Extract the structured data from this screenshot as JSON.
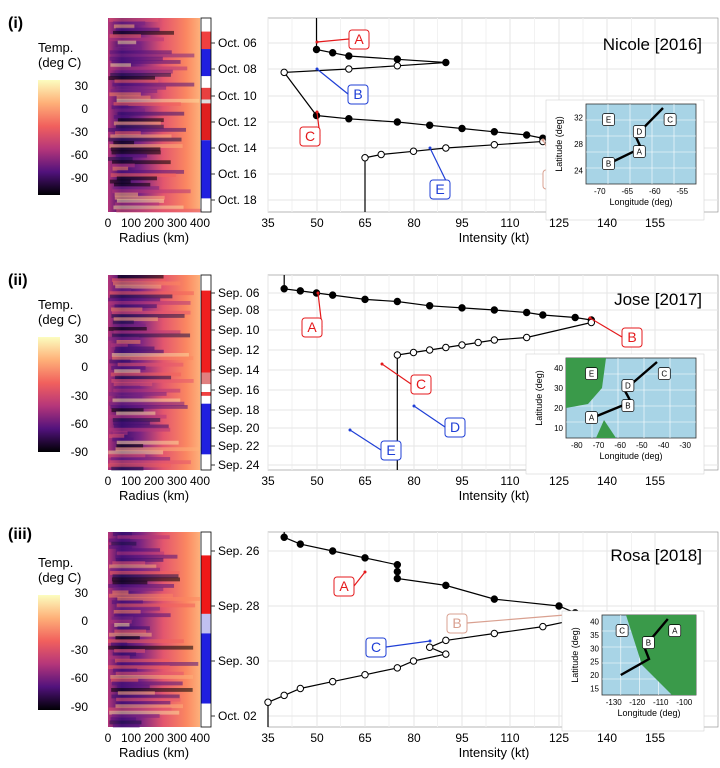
{
  "panels": [
    {
      "label": "(i)",
      "storm_title": "Nicole [2016]",
      "colorbar": {
        "title_line1": "Temp.",
        "title_line2": "(deg C)",
        "ticks": [
          "30",
          "0",
          "-30",
          "-60",
          "-90"
        ]
      },
      "heatmap": {
        "xlabel": "Radius (km)",
        "xticks": [
          "0",
          "100",
          "200",
          "300",
          "400"
        ]
      },
      "date_ticks": [
        "Oct. 06",
        "Oct. 08",
        "Oct. 10",
        "Oct. 12",
        "Oct. 14",
        "Oct. 16",
        "Oct. 18"
      ],
      "intensity": {
        "xlabel": "Intensity (kt)",
        "xticks": [
          "35",
          "50",
          "65",
          "80",
          "95",
          "110",
          "125",
          "140",
          "155"
        ]
      },
      "annotations": [
        "A",
        "B",
        "C",
        "D",
        "E"
      ],
      "inset": {
        "xlabel": "Longitude (deg)",
        "ylabel": "Latitude (deg)",
        "xticks": [
          "-70",
          "-65",
          "-60",
          "-55"
        ],
        "yticks": [
          "32",
          "28",
          "24"
        ],
        "labels": [
          "E",
          "D",
          "C",
          "B",
          "A"
        ]
      }
    },
    {
      "label": "(ii)",
      "storm_title": "Jose [2017]",
      "colorbar": {
        "title_line1": "Temp.",
        "title_line2": "(deg C)",
        "ticks": [
          "30",
          "0",
          "-30",
          "-60",
          "-90"
        ]
      },
      "heatmap": {
        "xlabel": "Radius (km)",
        "xticks": [
          "0",
          "100",
          "200",
          "300",
          "400"
        ]
      },
      "date_ticks": [
        "Sep. 06",
        "Sep. 08",
        "Sep. 10",
        "Sep. 12",
        "Sep. 14",
        "Sep. 16",
        "Sep. 18",
        "Sep. 20",
        "Sep. 22",
        "Sep. 24"
      ],
      "intensity": {
        "xlabel": "Intensity (kt)",
        "xticks": [
          "35",
          "50",
          "65",
          "80",
          "95",
          "110",
          "125",
          "140",
          "155"
        ]
      },
      "annotations": [
        "A",
        "B",
        "C",
        "D",
        "E"
      ],
      "inset": {
        "xlabel": "Longitude (deg)",
        "ylabel": "Latitude (deg)",
        "xticks": [
          "-80",
          "-70",
          "-60",
          "-50",
          "-40",
          "-30"
        ],
        "yticks": [
          "40",
          "30",
          "20",
          "10"
        ],
        "labels": [
          "E",
          "D",
          "C",
          "A",
          "B"
        ]
      }
    },
    {
      "label": "(iii)",
      "storm_title": "Rosa [2018]",
      "colorbar": {
        "title_line1": "Temp.",
        "title_line2": "(deg C)",
        "ticks": [
          "30",
          "0",
          "-30",
          "-60",
          "-90"
        ]
      },
      "heatmap": {
        "xlabel": "Radius (km)",
        "xticks": [
          "0",
          "100",
          "200",
          "300",
          "400"
        ]
      },
      "date_ticks": [
        "Sep. 26",
        "Sep. 28",
        "Sep. 30",
        "Oct. 02"
      ],
      "intensity": {
        "xlabel": "Intensity (kt)",
        "xticks": [
          "35",
          "50",
          "65",
          "80",
          "95",
          "110",
          "125",
          "140",
          "155"
        ]
      },
      "annotations": [
        "A",
        "B",
        "C"
      ],
      "inset": {
        "xlabel": "Longitude (deg)",
        "ylabel": "Latitude (deg)",
        "xticks": [
          "-130",
          "-120",
          "-110",
          "-100"
        ],
        "yticks": [
          "40",
          "35",
          "30",
          "25",
          "20",
          "15"
        ],
        "labels": [
          "C",
          "B",
          "A"
        ]
      }
    }
  ],
  "colors": {
    "annot_a": "#e41a1c",
    "annot_b_blue": "#1f3fd6",
    "annot_faded": "#d9a090",
    "ocean": "#a8d4e6",
    "land": "#3a9a4a"
  },
  "chart_data": [
    {
      "type": "line",
      "title": "Nicole [2016]",
      "xlabel": "Intensity (kt)",
      "xlim": [
        35,
        170
      ],
      "series": [
        {
          "marker": "filled",
          "x": [
            50,
            55,
            60,
            75,
            90
          ],
          "y": [
            "Oct. 06 12Z",
            "Oct. 06 18Z",
            "Oct. 07 00Z",
            "Oct. 07 06Z",
            "Oct. 07 12Z"
          ]
        },
        {
          "marker": "open",
          "x": [
            75,
            60,
            40
          ],
          "y": [
            "Oct. 07 18Z",
            "Oct. 08 00Z",
            "Oct. 08 06Z"
          ]
        },
        {
          "marker": "filled",
          "x": [
            50,
            60,
            75,
            85,
            95,
            105,
            115,
            120
          ],
          "y": [
            "Oct. 11 12Z",
            "Oct. 11 18Z",
            "Oct. 12 00Z",
            "Oct. 12 06Z",
            "Oct. 12 12Z",
            "Oct. 12 18Z",
            "Oct. 13 00Z",
            "Oct. 13 06Z"
          ]
        },
        {
          "marker": "open",
          "x": [
            120,
            105,
            90,
            80,
            70,
            65
          ],
          "y": [
            "Oct. 13 12Z",
            "Oct. 13 18Z",
            "Oct. 14 00Z",
            "Oct. 14 06Z",
            "Oct. 14 12Z",
            "Oct. 14 18Z"
          ]
        }
      ]
    },
    {
      "type": "line",
      "title": "Jose [2017]",
      "xlabel": "Intensity (kt)",
      "xlim": [
        35,
        170
      ],
      "series": [
        {
          "marker": "filled",
          "x": [
            40,
            45,
            50,
            55,
            65,
            75,
            85,
            95,
            105,
            115,
            120,
            130,
            135
          ],
          "y": [
            "Sep. 05 12Z",
            "Sep. 05 18Z",
            "Sep. 06 00Z",
            "Sep. 06 06Z",
            "Sep. 06 18Z",
            "Sep. 07 00Z",
            "Sep. 07 12Z",
            "Sep. 07 18Z",
            "Sep. 08 00Z",
            "Sep. 08 06Z",
            "Sep. 08 12Z",
            "Sep. 08 18Z",
            "Sep. 09 00Z"
          ]
        },
        {
          "marker": "open",
          "x": [
            135,
            115,
            105,
            100,
            95,
            90,
            85,
            80,
            75
          ],
          "y": [
            "Sep. 09 06Z",
            "Sep. 10 18Z",
            "Sep. 11 00Z",
            "Sep. 11 06Z",
            "Sep. 11 12Z",
            "Sep. 11 18Z",
            "Sep. 12 00Z",
            "Sep. 12 06Z",
            "Sep. 12 12Z"
          ]
        }
      ]
    },
    {
      "type": "line",
      "title": "Rosa [2018]",
      "xlabel": "Intensity (kt)",
      "xlim": [
        35,
        170
      ],
      "series": [
        {
          "marker": "filled",
          "x": [
            40,
            45,
            55,
            65,
            75,
            75,
            75,
            90,
            105,
            125,
            130
          ],
          "y": [
            "Sep. 25 12Z",
            "Sep. 25 18Z",
            "Sep. 26 00Z",
            "Sep. 26 06Z",
            "Sep. 26 12Z",
            "Sep. 26 18Z",
            "Sep. 27 00Z",
            "Sep. 27 06Z",
            "Sep. 27 18Z",
            "Sep. 28 00Z",
            "Sep. 28 06Z"
          ]
        },
        {
          "marker": "open",
          "x": [
            130,
            120,
            105,
            90,
            85,
            90,
            80,
            75,
            65,
            55,
            45,
            40,
            35
          ],
          "y": [
            "Sep. 28 12Z",
            "Sep. 28 18Z",
            "Sep. 29 00Z",
            "Sep. 29 06Z",
            "Sep. 29 12Z",
            "Sep. 29 18Z",
            "Sep. 30 00Z",
            "Sep. 30 06Z",
            "Sep. 30 12Z",
            "Sep. 30 18Z",
            "Oct. 01 00Z",
            "Oct. 01 06Z",
            "Oct. 01 12Z"
          ]
        }
      ]
    }
  ]
}
